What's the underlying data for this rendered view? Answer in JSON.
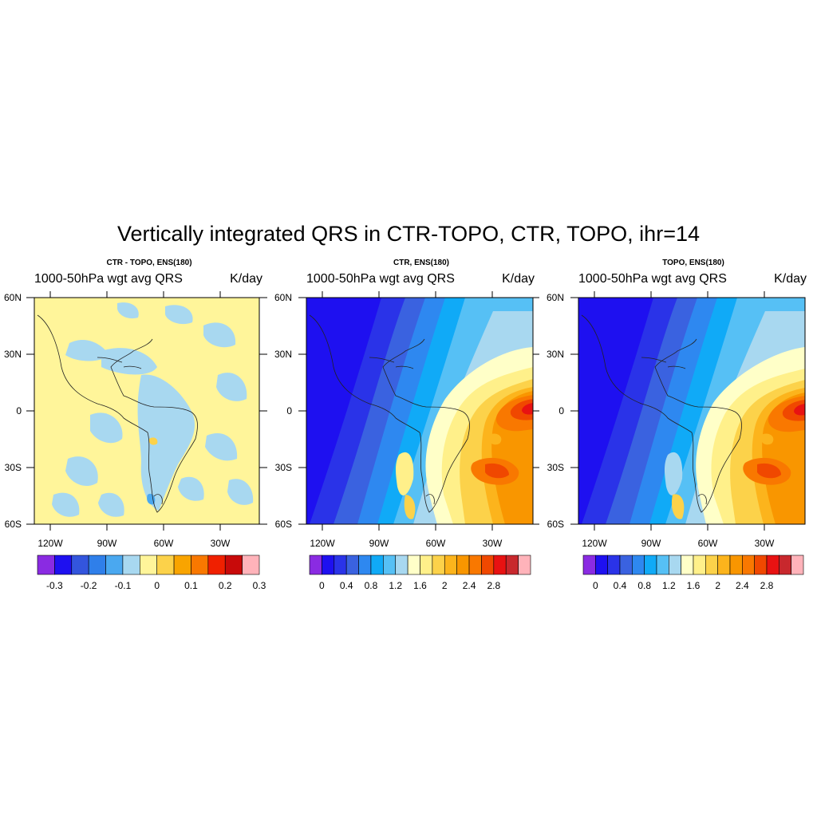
{
  "figure": {
    "title": "Vertically integrated QRS in CTR-TOPO, CTR, TOPO, ihr=14"
  },
  "axes": {
    "lat_labels": [
      "60N",
      "30N",
      "0",
      "30S",
      "60S"
    ],
    "lon_labels": [
      "120W",
      "90W",
      "60W",
      "30W"
    ]
  },
  "panels": [
    {
      "subtitle": "CTR - TOPO, ENS(180)",
      "variable": "1000-50hPa wgt avg QRS",
      "units": "K/day",
      "colorbar": {
        "colors": [
          "#8a2be2",
          "#1e10f0",
          "#3355dd",
          "#2f7fea",
          "#4aa8f0",
          "#a8d8f0",
          "#fff59a",
          "#fcd24a",
          "#f9a400",
          "#f97800",
          "#f02000",
          "#c80a0a",
          "#ffb3ba"
        ],
        "labels": [
          "-0.3",
          "-0.2",
          "-0.1",
          "0",
          "0.1",
          "0.2",
          "0.3"
        ]
      }
    },
    {
      "subtitle": "CTR, ENS(180)",
      "variable": "1000-50hPa wgt avg QRS",
      "units": "K/day",
      "colorbar": {
        "colors": [
          "#8a2be2",
          "#1e10f0",
          "#2a33e8",
          "#3a62e0",
          "#2e88f0",
          "#10aaf7",
          "#56c0f5",
          "#a8d8f0",
          "#ffffc8",
          "#fff08a",
          "#fcd24a",
          "#fcb41c",
          "#f99600",
          "#f97800",
          "#f04800",
          "#e81212",
          "#c8282d",
          "#ffb3ba"
        ],
        "labels": [
          "0",
          "0.4",
          "0.8",
          "1.2",
          "1.6",
          "2",
          "2.4",
          "2.8"
        ]
      }
    },
    {
      "subtitle": "TOPO, ENS(180)",
      "variable": "1000-50hPa wgt avg QRS",
      "units": "K/day",
      "colorbar": {
        "colors": [
          "#8a2be2",
          "#1e10f0",
          "#2a33e8",
          "#3a62e0",
          "#2e88f0",
          "#10aaf7",
          "#56c0f5",
          "#a8d8f0",
          "#ffffc8",
          "#fff08a",
          "#fcd24a",
          "#fcb41c",
          "#f99600",
          "#f97800",
          "#f04800",
          "#e81212",
          "#c8282d",
          "#ffb3ba"
        ],
        "labels": [
          "0",
          "0.4",
          "0.8",
          "1.2",
          "1.6",
          "2",
          "2.4",
          "2.8"
        ]
      }
    }
  ]
}
